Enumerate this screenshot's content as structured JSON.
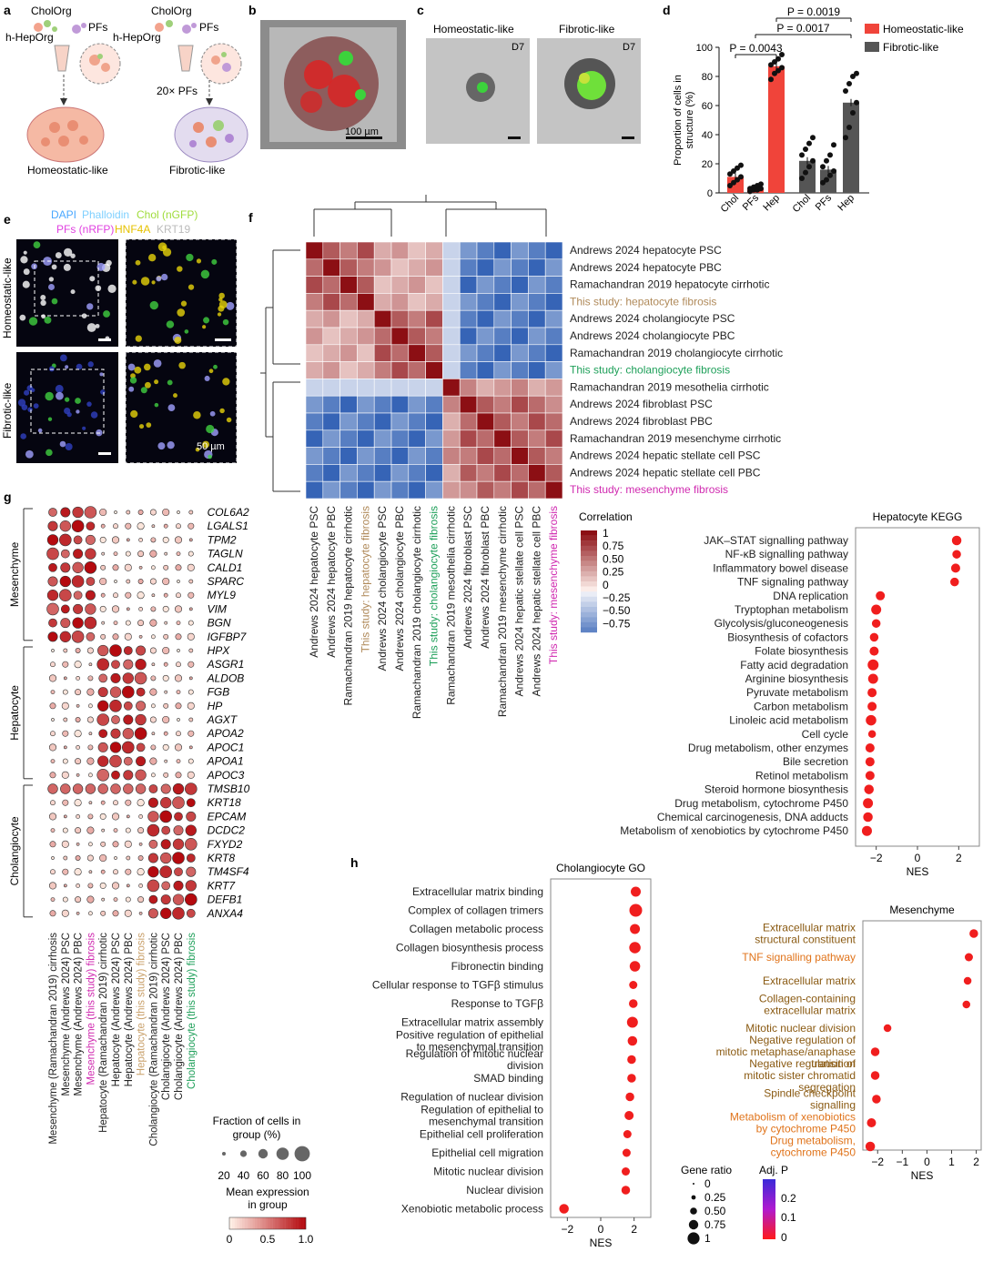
{
  "panel_letters": [
    "a",
    "b",
    "c",
    "d",
    "e",
    "f",
    "g",
    "h"
  ],
  "panel_a": {
    "left": {
      "top_label": "CholOrg",
      "hep_label": "h-HepOrg",
      "pf_label": "PFs",
      "bottom_label": "Homeostatic-like"
    },
    "right": {
      "top_label": "CholOrg",
      "hep_label": "h-HepOrg",
      "pf_label": "PFs",
      "ratio_label": "20× PFs",
      "bottom_label": "Fibrotic-like"
    }
  },
  "panel_b": {
    "scale_label": "100 µm"
  },
  "panel_c": {
    "left_title": "Homeostatic-like",
    "right_title": "Fibrotic-like",
    "day_label": "D7"
  },
  "panel_e": {
    "legend_line1": [
      {
        "text": "DAPI",
        "color": "#4aa8ff"
      },
      {
        "text": "Phalloidin",
        "color": "#7fd0ff"
      },
      {
        "text": "Chol (nGFP)",
        "color": "#9fdc3a"
      }
    ],
    "legend_line2": [
      {
        "text": "PFs (nRFP)",
        "color": "#e040e0"
      },
      {
        "text": "HNF4A",
        "color": "#e6c200"
      },
      {
        "text": "KRT19",
        "color": "#bbbbbb"
      }
    ],
    "row_labels": [
      "Homeostatic-like",
      "Fibrotic-like"
    ],
    "scale_label": "50 µm"
  },
  "chart_data": [
    {
      "id": "d",
      "type": "bar",
      "categories": [
        "Chol",
        "PFs",
        "Hep",
        "Chol",
        "PFs",
        "Hep"
      ],
      "series": [
        {
          "name": "Homeostatic-like",
          "color": "#f0443a",
          "values": [
            11,
            3,
            87,
            null,
            null,
            null
          ],
          "points": [
            [
              5,
              7,
              9,
              11,
              13,
              15,
              17,
              19
            ],
            [
              1,
              2,
              2,
              3,
              3,
              4,
              5,
              6
            ],
            [
              78,
              82,
              84,
              86,
              88,
              90,
              92,
              95
            ]
          ]
        },
        {
          "name": "Fibrotic-like",
          "color": "#555555",
          "values": [
            null,
            null,
            null,
            22,
            16,
            62
          ],
          "points": [
            [
              10,
              14,
              18,
              22,
              26,
              30,
              34,
              38
            ],
            [
              7,
              9,
              12,
              15,
              18,
              22,
              26,
              33
            ],
            [
              38,
              45,
              55,
              62,
              70,
              75,
              80,
              82
            ]
          ]
        }
      ],
      "ylabel": "Proportion of cells in structure (%)",
      "ylim": [
        0,
        100
      ],
      "yticks": [
        0,
        20,
        40,
        60,
        80,
        100
      ],
      "annotations": [
        "P = 0.0043",
        "P = 0.0017",
        "P = 0.0019"
      ],
      "legend": "top-right"
    },
    {
      "id": "f",
      "type": "heatmap",
      "labels": [
        "Andrews 2024 hepatocyte PSC",
        "Andrews 2024 hepatocyte PBC",
        "Ramachandran 2019 hepatocyte cirrhotic",
        "This study: hepatocyte fibrosis",
        "Andrews 2024 cholangiocyte PSC",
        "Andrews 2024 cholangiocyte PBC",
        "Ramachandran 2019 cholangiocyte cirrhotic",
        "This study: cholangiocyte fibrosis",
        "Ramachandran 2019 mesothelia cirrhotic",
        "Andrews 2024 fibroblast PSC",
        "Andrews 2024 fibroblast PBC",
        "Ramachandran 2019 mesenchyme cirrhotic",
        "Andrews 2024 hepatic stellate cell PSC",
        "Andrews 2024 hepatic stellate cell PBC",
        "This study: mesenchyme fibrosis"
      ],
      "label_colors": [
        "#222",
        "#222",
        "#222",
        "#b08a5a",
        "#222",
        "#222",
        "#222",
        "#1fa05a",
        "#222",
        "#222",
        "#222",
        "#222",
        "#222",
        "#222",
        "#d02ab0"
      ],
      "colorbar": {
        "title": "Correlation",
        "ticks": [
          "1",
          "0.75",
          "0.50",
          "0.25",
          "0",
          "−0.25",
          "−0.50",
          "−0.75"
        ],
        "range": [
          -0.75,
          1
        ]
      }
    },
    {
      "id": "hep-kegg",
      "type": "scatter",
      "title": "Hepatocyte KEGG",
      "xlabel": "NES",
      "xlim": [
        -3,
        3
      ],
      "xticks": [
        -2,
        0,
        2
      ],
      "categories": [
        "JAK–STAT signalling pathway",
        "NF-κB signalling pathway",
        "Inflammatory bowel disease",
        "TNF signaling pathway",
        "DNA replication",
        "Tryptophan metabolism",
        "Glycolysis/gluconeogenesis",
        "Biosynthesis of cofactors",
        "Folate biosynthesis",
        "Fatty acid degradation",
        "Arginine biosynthesis",
        "Pyruvate metabolism",
        "Carbon metabolism",
        "Linoleic acid metabolism",
        "Cell cycle",
        "Drug metabolism, other enzymes",
        "Bile secretion",
        "Retinol metabolism",
        "Steroid hormone biosynthesis",
        "Drug metabolism, cytochrome P450",
        "Chemical carcinogenesis, DNA adducts",
        "Metabolism of xenobiotics by cytochrome P450"
      ],
      "x": [
        1.9,
        1.9,
        1.85,
        1.8,
        -1.8,
        -2.0,
        -2.0,
        -2.1,
        -2.1,
        -2.15,
        -2.15,
        -2.2,
        -2.2,
        -2.25,
        -2.2,
        -2.3,
        -2.3,
        -2.3,
        -2.35,
        -2.4,
        -2.4,
        -2.45
      ],
      "size": [
        0.55,
        0.45,
        0.5,
        0.45,
        0.5,
        0.6,
        0.45,
        0.45,
        0.5,
        0.7,
        0.6,
        0.5,
        0.5,
        0.65,
        0.35,
        0.5,
        0.5,
        0.5,
        0.55,
        0.6,
        0.55,
        0.6
      ]
    },
    {
      "id": "chol-go",
      "type": "scatter",
      "title": "Cholangiocyte GO",
      "xlabel": "NES",
      "xlim": [
        -3,
        3
      ],
      "xticks": [
        -2,
        0,
        2
      ],
      "categories": [
        "Extracellular matrix binding",
        "Complex of collagen trimers",
        "Collagen metabolic process",
        "Collagen biosynthesis process",
        "Fibronectin binding",
        "Cellular response to TGFβ stimulus",
        "Response to TGFβ",
        "Extracellular matrix assembly",
        "Positive regulation of epithelial to mesenchymal transition",
        "Regulation of mitotic nuclear division",
        "SMAD binding",
        "Regulation of nuclear division",
        "Regulation of epithelial to mesenchymal transition",
        "Epithelial cell proliferation",
        "Epithelial cell migration",
        "Mitotic nuclear division",
        "Nuclear division",
        "Xenobiotic metabolic process"
      ],
      "x": [
        2.1,
        2.1,
        2.05,
        2.05,
        2.05,
        1.95,
        1.95,
        1.9,
        1.9,
        1.85,
        1.85,
        1.75,
        1.7,
        1.6,
        1.55,
        1.5,
        1.5,
        -2.2
      ],
      "size": [
        0.6,
        0.9,
        0.6,
        0.75,
        0.65,
        0.4,
        0.45,
        0.7,
        0.55,
        0.45,
        0.45,
        0.45,
        0.5,
        0.4,
        0.4,
        0.4,
        0.45,
        0.55
      ]
    },
    {
      "id": "mesenchyme",
      "type": "scatter",
      "title": "Mesenchyme",
      "xlabel": "NES",
      "xlim": [
        -2.6,
        2.2
      ],
      "xticks": [
        -2,
        -1,
        0,
        1,
        2
      ],
      "categories": [
        "Extracellular matrix structural constituent",
        "TNF signalling pathway",
        "Extracellular matrix",
        "Collagen-containing extracellular matrix",
        "Mitotic nuclear division",
        "Negative regulation of mitotic metaphase/anaphase transition",
        "Negative regulation of mitotic sister chromatid segregation",
        "Spindle checkpoint signalling",
        "Metabolism of xenobiotics by cytochrome P450",
        "Drug metabolism, cytochrome P450"
      ],
      "label_colors": [
        "#8a5a12",
        "#e0731a",
        "#8a5a12",
        "#8a5a12",
        "#8a5a12",
        "#8a5a12",
        "#8a5a12",
        "#8a5a12",
        "#e0731a",
        "#e0731a"
      ],
      "x": [
        1.9,
        1.7,
        1.65,
        1.6,
        -1.6,
        -2.1,
        -2.1,
        -2.05,
        -2.25,
        -2.3
      ],
      "size": [
        0.45,
        0.4,
        0.35,
        0.35,
        0.35,
        0.45,
        0.45,
        0.45,
        0.5,
        0.55
      ]
    },
    {
      "id": "g",
      "type": "dotplot",
      "genes": [
        "COL6A2",
        "LGALS1",
        "TPM2",
        "TAGLN",
        "CALD1",
        "SPARC",
        "MYL9",
        "VIM",
        "BGN",
        "IGFBP7",
        "HPX",
        "ASGR1",
        "ALDOB",
        "FGB",
        "HP",
        "AGXT",
        "APOA2",
        "APOC1",
        "APOA1",
        "APOC3",
        "TMSB10",
        "KRT18",
        "EPCAM",
        "DCDC2",
        "FXYD2",
        "KRT8",
        "TM4SF4",
        "KRT7",
        "DEFB1",
        "ANXA4"
      ],
      "gene_groups": [
        {
          "name": "Mesenchyme",
          "count": 10
        },
        {
          "name": "Hepatocyte",
          "count": 10
        },
        {
          "name": "Cholangiocyte",
          "count": 10
        }
      ],
      "groups": [
        "Mesenchyme (Ramachandran 2019) cirrhosis",
        "Mesenchyme (Andrews 2024) PSC",
        "Mesenchyme (Andrews 2024) PBC",
        "Mesenchyme (this study) fibrosis",
        "Hepatocyte (Ramachandran 2019) cirrhotic",
        "Hepatocyte (Andrews 2024) PSC",
        "Hepatocyte (Andrews 2024) PBC",
        "Hepatocyte (this study) fibrosis",
        "Cholangiocyte (Ramachandran 2019) cirrhotic",
        "Cholangiocyte (Andrews 2024) PSC",
        "Cholangiocyte (Andrews 2024) PBC",
        "Cholangiocyte (this study) fibrosis"
      ],
      "group_colors": [
        "#222",
        "#222",
        "#222",
        "#d02ab0",
        "#222",
        "#222",
        "#222",
        "#c9a06a",
        "#222",
        "#222",
        "#222",
        "#1fa05a"
      ],
      "size_legend": {
        "title": "Fraction of cells in group (%)",
        "ticks": [
          "20",
          "40",
          "60",
          "80",
          "100"
        ]
      },
      "color_legend": {
        "title": "Mean expression in group",
        "ticks": [
          "0",
          "0.5",
          "1.0"
        ]
      }
    }
  ],
  "h_label": "h",
  "gene_ratio_legend": {
    "title": "Gene ratio",
    "ticks": [
      "0",
      "0.25",
      "0.50",
      "0.75",
      "1"
    ]
  },
  "adjp_legend": {
    "title": "Adj. P",
    "ticks": [
      "0.2",
      "0.1",
      "0"
    ]
  }
}
